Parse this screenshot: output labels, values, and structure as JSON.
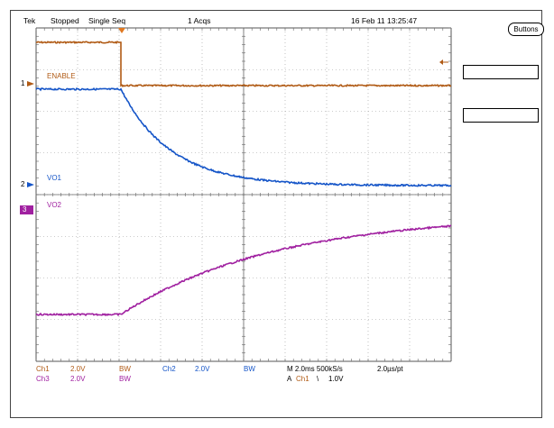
{
  "header": {
    "brand": "Tek",
    "state": "Stopped",
    "mode": "Single Seq",
    "acqs": "1 Acqs",
    "datetime": "16 Feb 11 13:25:47"
  },
  "side_panel": {
    "buttons_label": "Buttons",
    "box1": "",
    "box2": ""
  },
  "channels": {
    "ch1": {
      "label": "ENABLE",
      "marker": "1",
      "color": "#b05a14"
    },
    "ch2": {
      "label": "VO1",
      "marker": "2",
      "color": "#1555c8"
    },
    "ch3": {
      "label": "VO2",
      "marker": "3",
      "color": "#a020a0"
    }
  },
  "status": {
    "ch1_name": "Ch1",
    "ch1_scale": "2.0V",
    "ch1_bw": "BW",
    "ch2_name": "Ch2",
    "ch2_scale": "2.0V",
    "ch2_bw": "BW",
    "ch3_name": "Ch3",
    "ch3_scale": "2.0V",
    "ch3_bw": "BW",
    "timebase": "M 2.0ms 500kS/s",
    "resolution": "2.0µs/pt",
    "trigger_prefix": "A",
    "trigger_source": "Ch1",
    "trigger_level": "1.0V"
  },
  "colors": {
    "grid": "#999999",
    "trigger": "#e07820"
  }
}
